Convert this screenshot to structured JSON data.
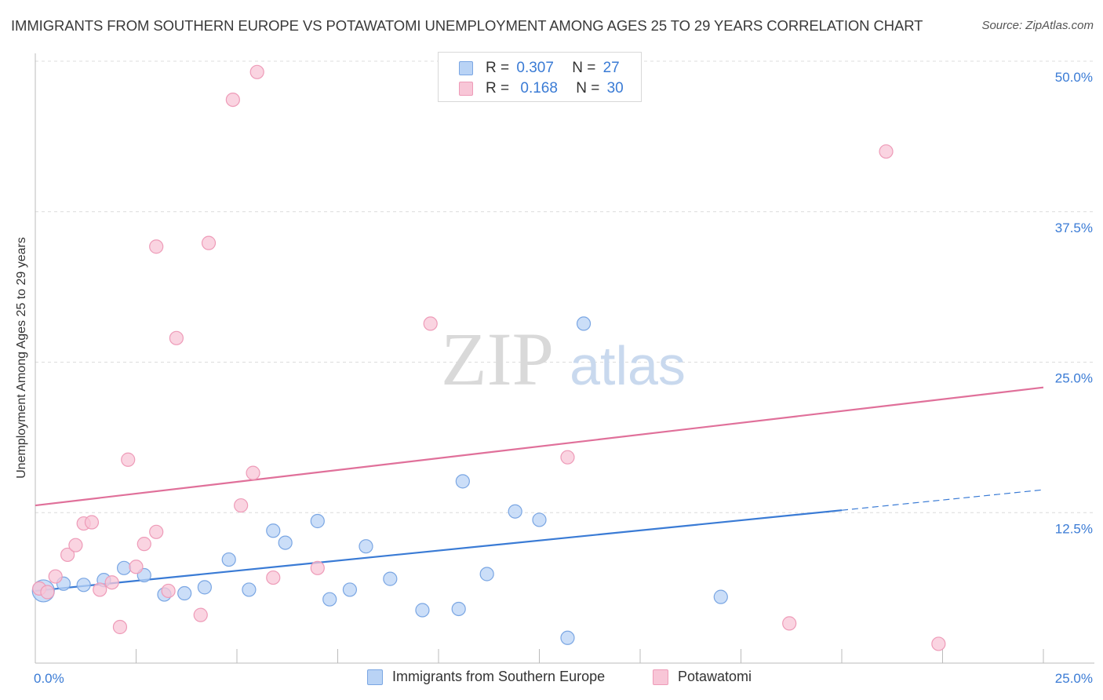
{
  "header": {
    "title": "IMMIGRANTS FROM SOUTHERN EUROPE VS POTAWATOMI UNEMPLOYMENT AMONG AGES 25 TO 29 YEARS CORRELATION CHART",
    "source": "Source: ZipAtlas.com"
  },
  "watermark": {
    "zip": "ZIP",
    "atlas": "atlas"
  },
  "legend": {
    "r_label": "R =",
    "n_label": "N =",
    "series": [
      {
        "name": "Immigrants from Southern Europe",
        "r": "0.307",
        "n": "27"
      },
      {
        "name": "Potawatomi",
        "r": "0.168",
        "n": "30"
      }
    ]
  },
  "colors": {
    "blue_fill": "#b9d3f5",
    "blue_stroke": "#7aa6e3",
    "blue_line": "#3a7bd5",
    "pink_fill": "#f8c6d7",
    "pink_stroke": "#ee9bb8",
    "pink_line": "#e0709a",
    "axis_label": "#3a7bd5",
    "grid": "#dcdcdc"
  },
  "chart_data": {
    "type": "scatter",
    "title": "IMMIGRANTS FROM SOUTHERN EUROPE VS POTAWATOMI UNEMPLOYMENT AMONG AGES 25 TO 29 YEARS CORRELATION CHART",
    "xlabel": "",
    "ylabel": "Unemployment Among Ages 25 to 29 years",
    "xlim": [
      0,
      25
    ],
    "ylim": [
      0,
      50
    ],
    "x_tick_labels": [
      "0.0%",
      "25.0%"
    ],
    "y_ticks": [
      12.5,
      25.0,
      37.5,
      50.0
    ],
    "y_tick_labels": [
      "12.5%",
      "25.0%",
      "37.5%",
      "50.0%"
    ],
    "grid": true,
    "legend_position": "top-center",
    "series": [
      {
        "name": "Immigrants from Southern Europe",
        "color": "#7aa6e3",
        "points": [
          [
            0.2,
            6.0
          ],
          [
            0.7,
            6.6
          ],
          [
            1.2,
            6.5
          ],
          [
            1.7,
            6.9
          ],
          [
            2.2,
            7.9
          ],
          [
            2.7,
            7.3
          ],
          [
            3.2,
            5.7
          ],
          [
            3.7,
            5.8
          ],
          [
            4.2,
            6.3
          ],
          [
            4.8,
            8.6
          ],
          [
            5.3,
            6.1
          ],
          [
            5.9,
            11.0
          ],
          [
            6.2,
            10.0
          ],
          [
            7.0,
            11.8
          ],
          [
            7.3,
            5.3
          ],
          [
            7.8,
            6.1
          ],
          [
            8.2,
            9.7
          ],
          [
            8.8,
            7.0
          ],
          [
            9.6,
            4.4
          ],
          [
            10.5,
            4.5
          ],
          [
            10.6,
            15.1
          ],
          [
            11.2,
            7.4
          ],
          [
            11.9,
            12.6
          ],
          [
            12.5,
            11.9
          ],
          [
            13.2,
            2.1
          ],
          [
            13.6,
            28.2
          ],
          [
            17.0,
            5.5
          ]
        ],
        "trend": {
          "x0": 0,
          "y0": 6.0,
          "x1": 20.0,
          "y1": 12.7,
          "dashed_to_x": 25,
          "dashed_to_y": 14.4
        }
      },
      {
        "name": "Potawatomi",
        "color": "#ee9bb8",
        "points": [
          [
            0.1,
            6.2
          ],
          [
            0.3,
            5.9
          ],
          [
            0.5,
            7.2
          ],
          [
            0.8,
            9.0
          ],
          [
            1.0,
            9.8
          ],
          [
            1.2,
            11.6
          ],
          [
            1.4,
            11.7
          ],
          [
            1.6,
            6.1
          ],
          [
            1.9,
            6.7
          ],
          [
            2.1,
            3.0
          ],
          [
            2.3,
            16.9
          ],
          [
            2.5,
            8.0
          ],
          [
            2.7,
            9.9
          ],
          [
            3.0,
            10.9
          ],
          [
            3.0,
            34.6
          ],
          [
            3.3,
            6.0
          ],
          [
            3.5,
            27.0
          ],
          [
            4.1,
            4.0
          ],
          [
            4.3,
            34.9
          ],
          [
            4.9,
            46.8
          ],
          [
            5.1,
            13.1
          ],
          [
            5.4,
            15.8
          ],
          [
            5.5,
            49.1
          ],
          [
            5.9,
            7.1
          ],
          [
            7.0,
            7.9
          ],
          [
            9.8,
            28.2
          ],
          [
            13.2,
            17.1
          ],
          [
            18.7,
            3.3
          ],
          [
            21.1,
            42.5
          ],
          [
            22.4,
            1.6
          ]
        ],
        "trend": {
          "x0": 0,
          "y0": 13.1,
          "x1": 25,
          "y1": 22.9
        }
      }
    ]
  }
}
